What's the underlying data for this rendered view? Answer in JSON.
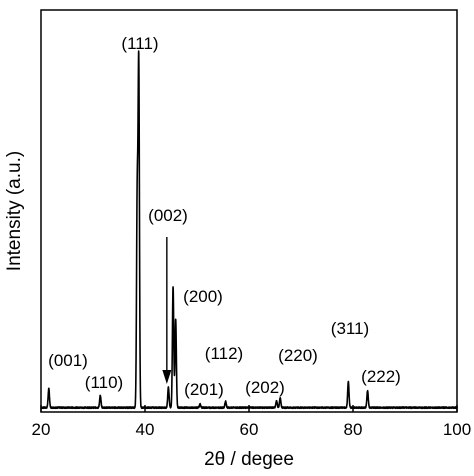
{
  "chart_data": {
    "type": "line",
    "xlabel": "2θ / degee",
    "ylabel": "Intensity (a.u.)",
    "xlim": [
      20,
      100
    ],
    "x_ticks": [
      20,
      40,
      60,
      80,
      100
    ],
    "y_ticks_shown": false,
    "grid": false,
    "series": [
      {
        "peaks": [
          {
            "x": 21.5,
            "y": 0.055
          },
          {
            "x": 31.4,
            "y": 0.035
          },
          {
            "x": 38.5,
            "y": 0.61
          },
          {
            "x": 38.8,
            "y": 1.0
          },
          {
            "x": 44.5,
            "y": 0.06
          },
          {
            "x": 45.4,
            "y": 0.355
          },
          {
            "x": 45.9,
            "y": 0.26
          },
          {
            "x": 50.6,
            "y": 0.01
          },
          {
            "x": 55.5,
            "y": 0.018
          },
          {
            "x": 65.3,
            "y": 0.02
          },
          {
            "x": 66.0,
            "y": 0.028
          },
          {
            "x": 79.1,
            "y": 0.076
          },
          {
            "x": 82.8,
            "y": 0.05
          }
        ]
      }
    ],
    "annotations": [
      {
        "text": "(001)",
        "x": 21.5
      },
      {
        "text": "(110)",
        "x": 31.4
      },
      {
        "text": "(111)",
        "x": 38.8
      },
      {
        "text": "(002)",
        "x": 44.5
      },
      {
        "text": "(200)",
        "x": 45.4
      },
      {
        "text": "(112)",
        "x": 55.5
      },
      {
        "text": "(201)",
        "x": 50.6
      },
      {
        "text": "(202)",
        "x": 65.3
      },
      {
        "text": "(220)",
        "x": 66.0
      },
      {
        "text": "(311)",
        "x": 79.1
      },
      {
        "text": "(222)",
        "x": 82.8
      }
    ]
  }
}
